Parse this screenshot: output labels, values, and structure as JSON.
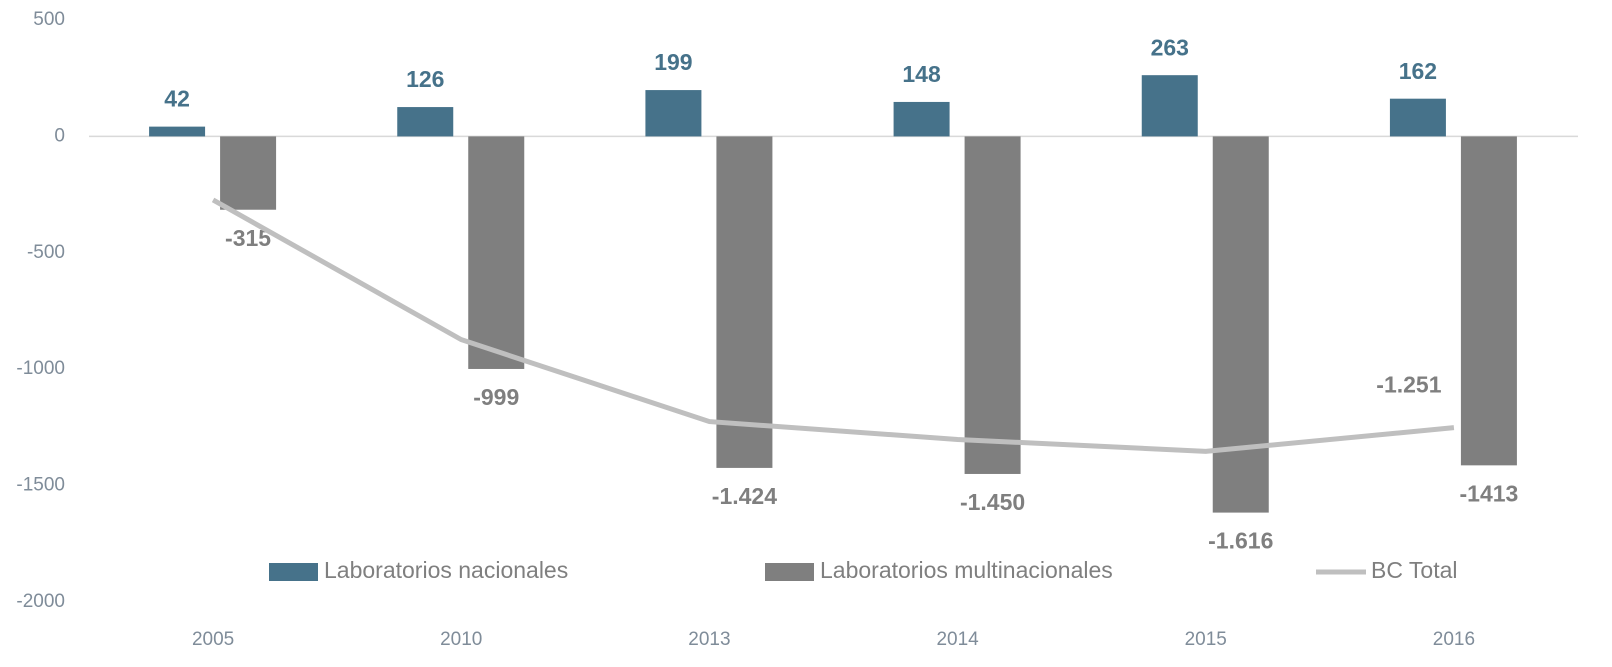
{
  "chart_data": {
    "type": "bar",
    "categories": [
      "2005",
      "2010",
      "2013",
      "2014",
      "2015",
      "2016"
    ],
    "series": [
      {
        "name": "Laboratorios nacionales",
        "color": "#46728a",
        "values": [
          42,
          126,
          199,
          148,
          263,
          162
        ]
      },
      {
        "name": "Laboratorios multinacionales",
        "color": "#7f7f7f",
        "values": [
          -315,
          -999,
          -1424,
          -1450,
          -1616,
          -1413
        ],
        "value_labels": [
          "-315",
          "-999",
          "-1.424",
          "-1.450",
          "-1.616",
          "-1413"
        ]
      },
      {
        "name": "BC Total",
        "type": "line",
        "color": "#bfbfbf",
        "values": [
          -273,
          -873,
          -1225,
          -1302,
          -1353,
          -1251
        ],
        "value_labels": [
          null,
          null,
          null,
          null,
          null,
          "-1.251"
        ]
      }
    ],
    "ylim": [
      -2000,
      500
    ],
    "yticks": [
      500,
      0,
      -500,
      -1000,
      -1500,
      -2000
    ],
    "grid": false,
    "legend": "bottom"
  }
}
